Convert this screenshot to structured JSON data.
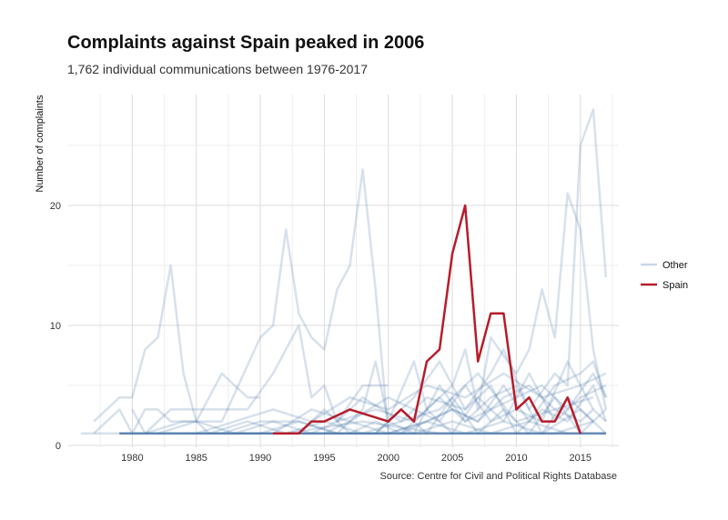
{
  "title": "Complaints against Spain peaked in 2006",
  "subtitle": "1,762 individual communications between 1976-2017",
  "caption": "Source: Centre for Civil and Political Rights Database",
  "colors": {
    "other": "#4a76a8",
    "spain": "#b71c2a",
    "grid": "#e3e3e3"
  },
  "chart_data": {
    "type": "line",
    "ylabel": "Number of complaints",
    "xlabel": "",
    "xlim": [
      1975,
      2018
    ],
    "ylim": [
      0,
      30
    ],
    "x_ticks": [
      1980,
      1985,
      1990,
      1995,
      2000,
      2005,
      2010,
      2015
    ],
    "y_ticks": [
      0,
      10,
      20
    ],
    "legend_position": "right",
    "legend": [
      {
        "label": "Other",
        "key": "other"
      },
      {
        "label": "Spain",
        "key": "spain"
      }
    ],
    "highlight": {
      "name": "Spain",
      "points": [
        [
          1991,
          1
        ],
        [
          1993,
          1
        ],
        [
          1994,
          2
        ],
        [
          1995,
          2
        ],
        [
          1997,
          3
        ],
        [
          2000,
          2
        ],
        [
          2001,
          3
        ],
        [
          2002,
          2
        ],
        [
          2003,
          7
        ],
        [
          2004,
          8
        ],
        [
          2005,
          16
        ],
        [
          2006,
          20
        ],
        [
          2007,
          7
        ],
        [
          2008,
          11
        ],
        [
          2009,
          11
        ],
        [
          2010,
          3
        ],
        [
          2011,
          4
        ],
        [
          2012,
          2
        ],
        [
          2013,
          2
        ],
        [
          2014,
          4
        ],
        [
          2015,
          1
        ]
      ]
    },
    "series": [
      {
        "points": [
          [
            1977,
            2
          ],
          [
            1979,
            4
          ],
          [
            1980,
            4
          ],
          [
            1981,
            8
          ],
          [
            1982,
            9
          ],
          [
            1983,
            15
          ],
          [
            1984,
            6
          ],
          [
            1985,
            2
          ],
          [
            1986,
            1
          ],
          [
            1990,
            1
          ]
        ]
      },
      {
        "points": [
          [
            1977,
            1
          ],
          [
            1978,
            2
          ],
          [
            1979,
            3
          ],
          [
            1980,
            1
          ],
          [
            1981,
            3
          ],
          [
            1982,
            3
          ],
          [
            1983,
            2
          ],
          [
            1985,
            2
          ],
          [
            1987,
            6
          ],
          [
            1988,
            5
          ],
          [
            1989,
            4
          ],
          [
            1990,
            4
          ]
        ]
      },
      {
        "points": [
          [
            1979,
            1
          ],
          [
            1981,
            1
          ],
          [
            1984,
            2
          ],
          [
            1987,
            2
          ],
          [
            1990,
            9
          ],
          [
            1991,
            10
          ],
          [
            1992,
            18
          ],
          [
            1993,
            11
          ],
          [
            1994,
            9
          ],
          [
            1995,
            8
          ],
          [
            1996,
            13
          ],
          [
            1997,
            15
          ],
          [
            1998,
            23
          ],
          [
            1999,
            13
          ],
          [
            2000,
            1
          ]
        ]
      },
      {
        "points": [
          [
            1980,
            3
          ],
          [
            1981,
            1
          ],
          [
            1983,
            3
          ],
          [
            1986,
            3
          ],
          [
            1989,
            3
          ],
          [
            1991,
            6
          ],
          [
            1992,
            8
          ],
          [
            1993,
            10
          ],
          [
            1994,
            4
          ],
          [
            1995,
            5
          ],
          [
            1996,
            2
          ],
          [
            1998,
            5
          ],
          [
            2000,
            5
          ]
        ]
      },
      {
        "points": [
          [
            1981,
            1
          ],
          [
            1984,
            1
          ],
          [
            1987,
            1
          ],
          [
            1990,
            2
          ],
          [
            1993,
            2
          ],
          [
            1996,
            1
          ],
          [
            1997,
            2
          ],
          [
            1998,
            3
          ],
          [
            1999,
            7
          ],
          [
            2000,
            2
          ],
          [
            2002,
            7
          ],
          [
            2003,
            3
          ],
          [
            2005,
            5
          ],
          [
            2006,
            8
          ],
          [
            2007,
            3
          ],
          [
            2008,
            9
          ],
          [
            2010,
            6
          ],
          [
            2011,
            8
          ],
          [
            2012,
            13
          ],
          [
            2013,
            9
          ],
          [
            2014,
            21
          ],
          [
            2015,
            18
          ],
          [
            2016,
            8
          ],
          [
            2017,
            3
          ]
        ]
      },
      {
        "points": [
          [
            1990,
            1
          ],
          [
            1993,
            2
          ],
          [
            1996,
            1
          ],
          [
            1999,
            1
          ],
          [
            2002,
            4
          ],
          [
            2004,
            7
          ],
          [
            2006,
            3
          ],
          [
            2008,
            6
          ],
          [
            2009,
            8
          ],
          [
            2011,
            3
          ],
          [
            2013,
            6
          ],
          [
            2014,
            5
          ],
          [
            2015,
            25
          ],
          [
            2016,
            28
          ],
          [
            2017,
            14
          ]
        ]
      },
      {
        "points": [
          [
            1985,
            1
          ],
          [
            1988,
            2
          ],
          [
            1991,
            3
          ],
          [
            1994,
            2
          ],
          [
            1997,
            4
          ],
          [
            2000,
            3
          ],
          [
            2003,
            5
          ],
          [
            2006,
            4
          ],
          [
            2009,
            6
          ],
          [
            2012,
            4
          ],
          [
            2015,
            5
          ],
          [
            2017,
            6
          ]
        ]
      },
      {
        "points": [
          [
            1982,
            1
          ],
          [
            1985,
            2
          ],
          [
            1988,
            1
          ],
          [
            1991,
            1
          ],
          [
            1994,
            3
          ],
          [
            1997,
            2
          ],
          [
            2000,
            1
          ],
          [
            2003,
            2
          ],
          [
            2005,
            3
          ],
          [
            2007,
            2
          ],
          [
            2009,
            4
          ],
          [
            2011,
            5
          ],
          [
            2013,
            3
          ],
          [
            2015,
            2
          ],
          [
            2016,
            3
          ],
          [
            2017,
            2
          ]
        ]
      },
      {
        "points": [
          [
            1986,
            1
          ],
          [
            1989,
            2
          ],
          [
            1992,
            1
          ],
          [
            1995,
            2
          ],
          [
            1998,
            1
          ],
          [
            2001,
            2
          ],
          [
            2004,
            3
          ],
          [
            2007,
            6
          ],
          [
            2010,
            2
          ],
          [
            2013,
            3
          ],
          [
            2016,
            4
          ]
        ]
      },
      {
        "points": [
          [
            1992,
            1
          ],
          [
            1994,
            1
          ],
          [
            1996,
            2
          ],
          [
            1999,
            3
          ],
          [
            2002,
            2
          ],
          [
            2004,
            4
          ],
          [
            2006,
            2
          ],
          [
            2008,
            3
          ],
          [
            2010,
            4
          ],
          [
            2012,
            5
          ],
          [
            2014,
            3
          ],
          [
            2016,
            6
          ],
          [
            2017,
            4
          ]
        ]
      },
      {
        "points": [
          [
            1993,
            1
          ],
          [
            1995,
            3
          ],
          [
            1997,
            1
          ],
          [
            1999,
            2
          ],
          [
            2001,
            1
          ],
          [
            2003,
            3
          ],
          [
            2005,
            1
          ],
          [
            2007,
            4
          ],
          [
            2009,
            2
          ],
          [
            2011,
            6
          ],
          [
            2013,
            2
          ],
          [
            2015,
            4
          ],
          [
            2017,
            5
          ]
        ]
      },
      {
        "points": [
          [
            1984,
            1
          ],
          [
            1987,
            1
          ],
          [
            1990,
            1
          ],
          [
            1993,
            1
          ],
          [
            1996,
            1
          ],
          [
            1999,
            1
          ],
          [
            2002,
            1
          ],
          [
            2005,
            2
          ],
          [
            2008,
            1
          ],
          [
            2011,
            2
          ],
          [
            2014,
            1
          ],
          [
            2017,
            1
          ]
        ]
      },
      {
        "points": [
          [
            1995,
            1
          ],
          [
            1997,
            2
          ],
          [
            2000,
            4
          ],
          [
            2002,
            3
          ],
          [
            2004,
            2
          ],
          [
            2006,
            5
          ],
          [
            2008,
            2
          ],
          [
            2010,
            3
          ],
          [
            2012,
            2
          ],
          [
            2014,
            7
          ],
          [
            2016,
            3
          ]
        ]
      },
      {
        "points": [
          [
            1996,
            2
          ],
          [
            1998,
            4
          ],
          [
            2001,
            2
          ],
          [
            2003,
            4
          ],
          [
            2006,
            3
          ],
          [
            2008,
            5
          ],
          [
            2010,
            1
          ],
          [
            2012,
            3
          ],
          [
            2014,
            2
          ],
          [
            2016,
            5
          ],
          [
            2017,
            2
          ]
        ]
      },
      {
        "points": [
          [
            1999,
            1
          ],
          [
            2001,
            3
          ],
          [
            2003,
            1
          ],
          [
            2005,
            4
          ],
          [
            2007,
            1
          ],
          [
            2009,
            3
          ],
          [
            2011,
            1
          ],
          [
            2013,
            4
          ],
          [
            2015,
            1
          ],
          [
            2017,
            3
          ]
        ]
      },
      {
        "points": [
          [
            2000,
            2
          ],
          [
            2002,
            1
          ],
          [
            2004,
            5
          ],
          [
            2006,
            2
          ],
          [
            2008,
            4
          ],
          [
            2010,
            5
          ],
          [
            2012,
            1
          ],
          [
            2014,
            4
          ],
          [
            2016,
            2
          ]
        ]
      },
      {
        "points": [
          [
            1988,
            1
          ],
          [
            1991,
            2
          ],
          [
            1994,
            1
          ],
          [
            1997,
            1
          ],
          [
            2000,
            1
          ],
          [
            2003,
            2
          ],
          [
            2006,
            1
          ],
          [
            2009,
            2
          ],
          [
            2012,
            1
          ],
          [
            2015,
            3
          ],
          [
            2017,
            1
          ]
        ]
      },
      {
        "points": [
          [
            2001,
            1
          ],
          [
            2003,
            2
          ],
          [
            2005,
            3
          ],
          [
            2007,
            2
          ],
          [
            2009,
            5
          ],
          [
            2011,
            2
          ],
          [
            2013,
            5
          ],
          [
            2015,
            6
          ],
          [
            2016,
            7
          ],
          [
            2017,
            4
          ]
        ]
      },
      {
        "points": [
          [
            1976,
            1
          ],
          [
            2017,
            1
          ]
        ]
      },
      {
        "points": [
          [
            1979,
            1
          ],
          [
            1983,
            1
          ],
          [
            1988,
            1
          ],
          [
            1992,
            1
          ],
          [
            1998,
            2
          ],
          [
            2004,
            1
          ],
          [
            2009,
            1
          ],
          [
            2013,
            1
          ],
          [
            2016,
            2
          ]
        ]
      }
    ]
  }
}
